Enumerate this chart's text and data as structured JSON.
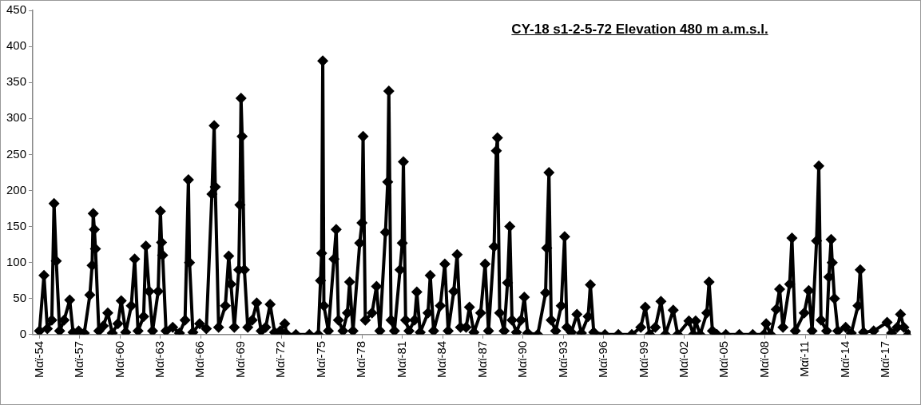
{
  "chart_data": {
    "type": "line",
    "title": "CY-18 s1-2-5-72 Elevation 480 m a.m.s.l.",
    "marker": "diamond",
    "line_style": "solid",
    "grid": false,
    "legend": false,
    "xlim": [
      "1953-11",
      "2019-03"
    ],
    "ylim": [
      0,
      450
    ],
    "yticks": [
      0,
      50,
      100,
      150,
      200,
      250,
      300,
      350,
      400,
      450
    ],
    "xticks": [
      {
        "value": "1954-05",
        "label": "Μαϊ-54"
      },
      {
        "value": "1957-05",
        "label": "Μαϊ-57"
      },
      {
        "value": "1960-05",
        "label": "Μαϊ-60"
      },
      {
        "value": "1963-05",
        "label": "Μαϊ-63"
      },
      {
        "value": "1966-05",
        "label": "Μαϊ-66"
      },
      {
        "value": "1969-05",
        "label": "Μαϊ-69"
      },
      {
        "value": "1972-05",
        "label": "Μαϊ-72"
      },
      {
        "value": "1975-05",
        "label": "Μαϊ-75"
      },
      {
        "value": "1978-05",
        "label": "Μαϊ-78"
      },
      {
        "value": "1981-05",
        "label": "Μαϊ-81"
      },
      {
        "value": "1984-05",
        "label": "Μαϊ-84"
      },
      {
        "value": "1987-05",
        "label": "Μαϊ-87"
      },
      {
        "value": "1990-05",
        "label": "Μαϊ-90"
      },
      {
        "value": "1993-05",
        "label": "Μαϊ-93"
      },
      {
        "value": "1996-05",
        "label": "Μαϊ-96"
      },
      {
        "value": "1999-05",
        "label": "Μαϊ-99"
      },
      {
        "value": "2002-05",
        "label": "Μαϊ-02"
      },
      {
        "value": "2005-05",
        "label": "Μαϊ-05"
      },
      {
        "value": "2008-05",
        "label": "Μαϊ-08"
      },
      {
        "value": "2011-05",
        "label": "Μαϊ-11"
      },
      {
        "value": "2014-05",
        "label": "Μαϊ-14"
      },
      {
        "value": "2017-05",
        "label": "Μαϊ-17"
      }
    ],
    "series": [
      {
        "color": "#000000",
        "x": [
          "1954-05",
          "1954-09",
          "1954-12",
          "1955-04",
          "1955-06",
          "1955-08",
          "1955-11",
          "1956-03",
          "1956-08",
          "1956-11",
          "1957-04",
          "1957-09",
          "1958-02",
          "1958-04",
          "1958-05",
          "1958-06",
          "1958-07",
          "1958-10",
          "1959-02",
          "1959-06",
          "1959-10",
          "1960-03",
          "1960-06",
          "1960-10",
          "1961-03",
          "1961-06",
          "1961-09",
          "1962-02",
          "1962-04",
          "1962-07",
          "1962-10",
          "1963-03",
          "1963-05",
          "1963-06",
          "1963-07",
          "1963-10",
          "1964-04",
          "1964-10",
          "1965-03",
          "1965-06",
          "1965-07",
          "1965-10",
          "1966-04",
          "1966-10",
          "1967-03",
          "1967-05",
          "1967-06",
          "1967-09",
          "1968-03",
          "1968-06",
          "1968-08",
          "1968-11",
          "1969-03",
          "1969-04",
          "1969-05",
          "1969-06",
          "1969-08",
          "1969-11",
          "1970-03",
          "1970-07",
          "1970-11",
          "1971-03",
          "1971-07",
          "1971-11",
          "1972-04",
          "1972-08",
          "1972-10",
          "1973-06",
          "1974-06",
          "1975-02",
          "1975-04",
          "1975-05",
          "1975-06",
          "1975-07",
          "1975-11",
          "1976-04",
          "1976-06",
          "1976-08",
          "1976-12",
          "1977-04",
          "1977-06",
          "1977-09",
          "1978-03",
          "1978-05",
          "1978-06",
          "1978-08",
          "1979-02",
          "1979-06",
          "1979-09",
          "1980-02",
          "1980-04",
          "1980-05",
          "1980-07",
          "1980-10",
          "1981-03",
          "1981-05",
          "1981-06",
          "1981-08",
          "1981-11",
          "1982-04",
          "1982-06",
          "1982-09",
          "1983-04",
          "1983-06",
          "1983-09",
          "1984-03",
          "1984-07",
          "1984-10",
          "1985-03",
          "1985-06",
          "1985-09",
          "1986-02",
          "1986-05",
          "1986-09",
          "1987-03",
          "1987-07",
          "1987-10",
          "1988-03",
          "1988-05",
          "1988-06",
          "1988-08",
          "1988-12",
          "1989-03",
          "1989-05",
          "1989-07",
          "1989-11",
          "1990-03",
          "1990-06",
          "1990-09",
          "1991-06",
          "1992-01",
          "1992-02",
          "1992-04",
          "1992-06",
          "1992-10",
          "1993-03",
          "1993-06",
          "1993-08",
          "1993-12",
          "1994-05",
          "1994-09",
          "1995-03",
          "1995-05",
          "1995-08",
          "1996-06",
          "1997-06",
          "1998-06",
          "1999-02",
          "1999-06",
          "1999-10",
          "2000-03",
          "2000-08",
          "2000-12",
          "2001-07",
          "2001-11",
          "2002-09",
          "2003-01",
          "2003-03",
          "2003-07",
          "2004-01",
          "2004-03",
          "2004-06",
          "2004-10",
          "2005-06",
          "2006-06",
          "2007-06",
          "2008-04",
          "2008-06",
          "2008-10",
          "2009-03",
          "2009-06",
          "2009-09",
          "2010-03",
          "2010-05",
          "2010-08",
          "2011-04",
          "2011-08",
          "2011-11",
          "2012-03",
          "2012-05",
          "2012-07",
          "2012-12",
          "2013-02",
          "2013-04",
          "2013-05",
          "2013-07",
          "2013-10",
          "2014-05",
          "2014-10",
          "2015-04",
          "2015-06",
          "2015-09",
          "2016-06",
          "2017-06",
          "2017-10",
          "2018-03",
          "2018-06",
          "2018-09",
          "2019-01"
        ],
        "values": [
          5,
          82,
          8,
          20,
          182,
          102,
          5,
          20,
          48,
          3,
          5,
          2,
          55,
          96,
          168,
          146,
          119,
          5,
          12,
          30,
          2,
          15,
          47,
          3,
          40,
          105,
          5,
          25,
          123,
          60,
          5,
          60,
          171,
          128,
          110,
          5,
          10,
          2,
          20,
          215,
          100,
          3,
          15,
          8,
          195,
          290,
          205,
          10,
          40,
          109,
          70,
          10,
          90,
          180,
          328,
          275,
          90,
          10,
          20,
          44,
          5,
          10,
          42,
          3,
          5,
          15,
          0,
          0,
          0,
          0,
          75,
          113,
          380,
          40,
          5,
          105,
          146,
          20,
          5,
          30,
          73,
          5,
          127,
          155,
          275,
          20,
          30,
          67,
          5,
          142,
          212,
          338,
          20,
          5,
          90,
          127,
          240,
          20,
          5,
          20,
          59,
          3,
          30,
          82,
          5,
          40,
          98,
          5,
          60,
          111,
          10,
          10,
          38,
          3,
          30,
          98,
          5,
          122,
          255,
          273,
          30,
          5,
          72,
          150,
          20,
          3,
          20,
          52,
          2,
          0,
          58,
          120,
          225,
          20,
          5,
          40,
          136,
          10,
          3,
          28,
          2,
          25,
          69,
          3,
          0,
          0,
          0,
          10,
          38,
          0,
          10,
          46,
          0,
          34,
          0,
          19,
          0,
          19,
          0,
          30,
          73,
          5,
          0,
          0,
          0,
          0,
          0,
          15,
          0,
          35,
          63,
          10,
          70,
          134,
          5,
          30,
          61,
          5,
          130,
          234,
          20,
          5,
          80,
          132,
          100,
          50,
          5,
          10,
          2,
          40,
          90,
          3,
          5,
          17,
          2,
          10,
          28,
          10,
          0
        ]
      }
    ]
  }
}
